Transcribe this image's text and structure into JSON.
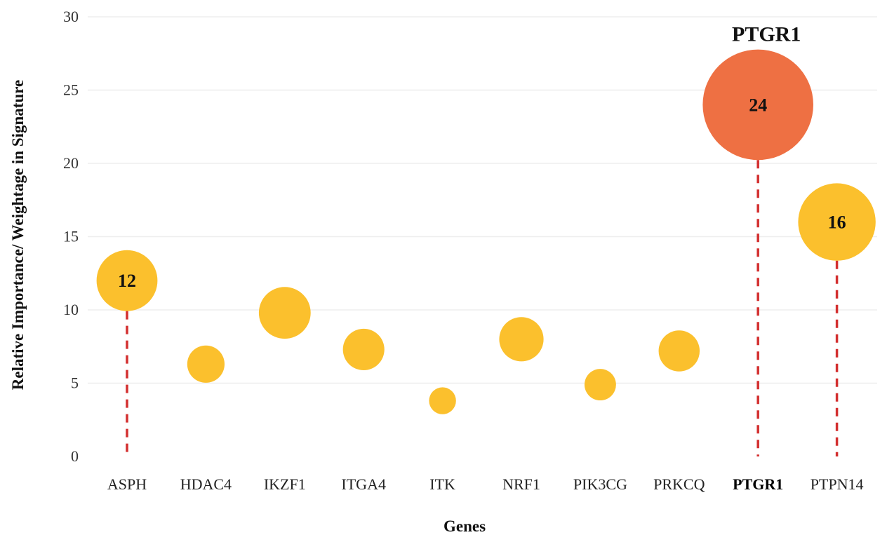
{
  "chart_data": {
    "type": "scatter",
    "xlabel": "Genes",
    "ylabel": "Relative Importance/ Weightage in Signature",
    "ylim": [
      0,
      30
    ],
    "yticks": [
      0,
      5,
      10,
      15,
      20,
      25,
      30
    ],
    "grid": true,
    "categories": [
      "ASPH",
      "HDAC4",
      "IKZF1",
      "ITGA4",
      "ITK",
      "NRF1",
      "PIK3CG",
      "PRKCQ",
      "PTGR1",
      "PTPN14"
    ],
    "values": [
      12,
      6.3,
      9.8,
      7.3,
      3.8,
      8.0,
      4.9,
      7.2,
      24,
      16
    ],
    "data_labels": [
      "12",
      "",
      "",
      "",
      "",
      "",
      "",
      "",
      "24",
      "16"
    ],
    "highlight": "PTGR1",
    "highlight_label": "PTGR1",
    "dashed_stems": [
      "ASPH",
      "PTGR1",
      "PTPN14"
    ],
    "colors": {
      "bubble": "#FBC02D",
      "highlight": "#EE7043",
      "stem": "#D32F2F",
      "grid": "#EEEEEE"
    }
  }
}
